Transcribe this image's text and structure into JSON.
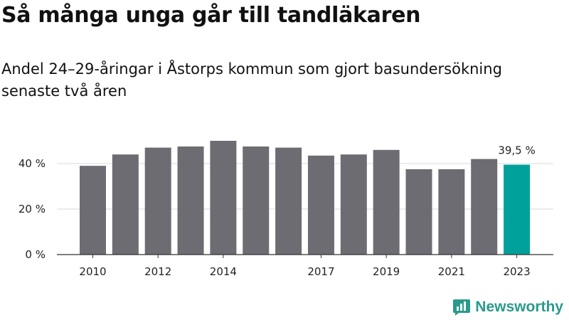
{
  "title": "Så många unga går till tandläkaren",
  "subtitle": "Andel 24–29-åringar i Åstorps kommun som gjort basundersökning senaste två åren",
  "brand": {
    "name": "Newsworthy",
    "color": "#2a9a8c"
  },
  "chart_data": {
    "type": "bar",
    "categories": [
      "2010",
      "2011",
      "2012",
      "2013",
      "2014",
      "2015",
      "2016",
      "2017",
      "2018",
      "2019",
      "2020",
      "2021",
      "2022",
      "2023"
    ],
    "values": [
      39,
      44,
      47,
      47.5,
      50,
      47.5,
      47,
      43.5,
      44,
      46,
      37.5,
      37.5,
      42,
      39.5
    ],
    "x_tick_labels": [
      "2010",
      "",
      "2012",
      "",
      "2014",
      "",
      "",
      "2017",
      "",
      "2019",
      "",
      "2021",
      "",
      "2023"
    ],
    "y_ticks": [
      0,
      20,
      40
    ],
    "y_tick_labels": [
      "0 %",
      "20 %",
      "40 %"
    ],
    "ylim": [
      0,
      50
    ],
    "highlight_index": 13,
    "highlight_label": "39,5 %",
    "colors": {
      "bar": "#6d6c72",
      "highlight": "#00a19a",
      "grid": "#d8d8d8"
    },
    "grid": true
  }
}
